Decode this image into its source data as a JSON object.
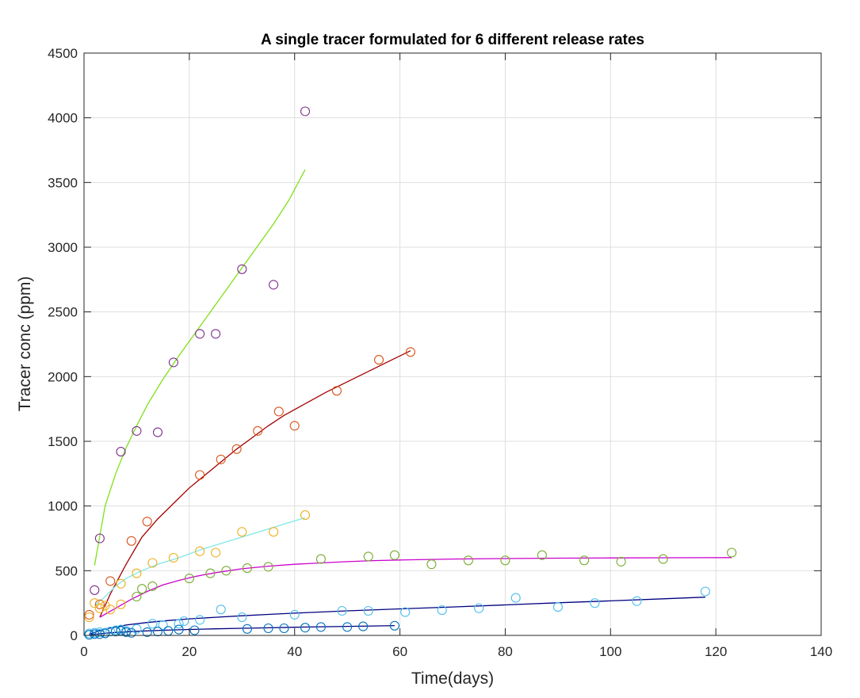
{
  "chart_data": {
    "type": "scatter",
    "title": "A single tracer formulated for 6 different release rates",
    "xlabel": "Time(days)",
    "ylabel": "Tracer conc (ppm)",
    "xlim": [
      0,
      140
    ],
    "ylim": [
      0,
      4500
    ],
    "xticks": [
      0,
      20,
      40,
      60,
      80,
      100,
      120,
      140
    ],
    "yticks": [
      0,
      500,
      1000,
      1500,
      2000,
      2500,
      3000,
      3500,
      4000,
      4500
    ],
    "grid": true,
    "legend": "none",
    "series": [
      {
        "marker_color": "#7e2f8e",
        "line_color": "#7fe01a",
        "points": [
          [
            2,
            350
          ],
          [
            3,
            750
          ],
          [
            7,
            1420
          ],
          [
            10,
            1580
          ],
          [
            14,
            1570
          ],
          [
            17,
            2110
          ],
          [
            22,
            2330
          ],
          [
            25,
            2330
          ],
          [
            30,
            2830
          ],
          [
            36,
            2710
          ],
          [
            42,
            4050
          ]
        ],
        "fit": [
          [
            2,
            540
          ],
          [
            4,
            1000
          ],
          [
            6,
            1250
          ],
          [
            8,
            1450
          ],
          [
            10,
            1620
          ],
          [
            12,
            1780
          ],
          [
            15,
            1980
          ],
          [
            18,
            2160
          ],
          [
            21,
            2330
          ],
          [
            24,
            2500
          ],
          [
            27,
            2670
          ],
          [
            30,
            2840
          ],
          [
            33,
            3010
          ],
          [
            36,
            3180
          ],
          [
            39,
            3370
          ],
          [
            42,
            3600
          ]
        ]
      },
      {
        "marker_color": "#d95319",
        "line_color": "#a50000",
        "points": [
          [
            1,
            160
          ],
          [
            3,
            240
          ],
          [
            5,
            420
          ],
          [
            9,
            730
          ],
          [
            12,
            880
          ],
          [
            22,
            1240
          ],
          [
            26,
            1360
          ],
          [
            29,
            1440
          ],
          [
            33,
            1580
          ],
          [
            37,
            1730
          ],
          [
            40,
            1620
          ],
          [
            48,
            1890
          ],
          [
            56,
            2130
          ],
          [
            62,
            2190
          ]
        ],
        "fit": [
          [
            3,
            140
          ],
          [
            5,
            320
          ],
          [
            8,
            550
          ],
          [
            11,
            760
          ],
          [
            14,
            900
          ],
          [
            17,
            1020
          ],
          [
            20,
            1140
          ],
          [
            23,
            1240
          ],
          [
            26,
            1340
          ],
          [
            29,
            1440
          ],
          [
            32,
            1530
          ],
          [
            35,
            1620
          ],
          [
            38,
            1700
          ],
          [
            42,
            1790
          ],
          [
            46,
            1880
          ],
          [
            50,
            1960
          ],
          [
            54,
            2040
          ],
          [
            58,
            2120
          ],
          [
            62,
            2200
          ]
        ]
      },
      {
        "marker_color": "#edb120",
        "line_color": "#7fe8e8",
        "points": [
          [
            1,
            140
          ],
          [
            2,
            250
          ],
          [
            3,
            210
          ],
          [
            4,
            230
          ],
          [
            5,
            200
          ],
          [
            7,
            240
          ],
          [
            7,
            400
          ],
          [
            10,
            480
          ],
          [
            13,
            560
          ],
          [
            17,
            600
          ],
          [
            22,
            650
          ],
          [
            25,
            640
          ],
          [
            30,
            800
          ],
          [
            36,
            800
          ],
          [
            42,
            930
          ]
        ],
        "fit": [
          [
            2,
            230
          ],
          [
            4,
            300
          ],
          [
            6,
            380
          ],
          [
            8,
            440
          ],
          [
            11,
            500
          ],
          [
            14,
            550
          ],
          [
            18,
            600
          ],
          [
            22,
            660
          ],
          [
            26,
            710
          ],
          [
            30,
            760
          ],
          [
            34,
            810
          ],
          [
            38,
            860
          ],
          [
            42,
            910
          ]
        ]
      },
      {
        "marker_color": "#77ac30",
        "line_color": "#cc00cc",
        "points": [
          [
            10,
            300
          ],
          [
            11,
            360
          ],
          [
            13,
            380
          ],
          [
            20,
            440
          ],
          [
            24,
            480
          ],
          [
            27,
            500
          ],
          [
            31,
            520
          ],
          [
            35,
            530
          ],
          [
            45,
            590
          ],
          [
            54,
            610
          ],
          [
            59,
            620
          ],
          [
            66,
            550
          ],
          [
            73,
            580
          ],
          [
            80,
            580
          ],
          [
            87,
            620
          ],
          [
            95,
            580
          ],
          [
            102,
            570
          ],
          [
            110,
            590
          ],
          [
            123,
            640
          ]
        ],
        "fit": [
          [
            3,
            140
          ],
          [
            6,
            210
          ],
          [
            9,
            280
          ],
          [
            12,
            340
          ],
          [
            15,
            390
          ],
          [
            18,
            425
          ],
          [
            21,
            455
          ],
          [
            25,
            485
          ],
          [
            30,
            515
          ],
          [
            35,
            535
          ],
          [
            40,
            550
          ],
          [
            45,
            560
          ],
          [
            50,
            570
          ],
          [
            55,
            578
          ],
          [
            60,
            583
          ],
          [
            70,
            590
          ],
          [
            80,
            594
          ],
          [
            90,
            597
          ],
          [
            100,
            599
          ],
          [
            110,
            600
          ],
          [
            123,
            601
          ]
        ]
      },
      {
        "marker_color": "#4dbeee",
        "line_color": "#00007f",
        "points": [
          [
            1,
            15
          ],
          [
            2,
            20
          ],
          [
            3,
            25
          ],
          [
            4,
            20
          ],
          [
            5,
            30
          ],
          [
            6,
            40
          ],
          [
            7,
            45
          ],
          [
            8,
            35
          ],
          [
            10,
            50
          ],
          [
            13,
            90
          ],
          [
            15,
            80
          ],
          [
            18,
            90
          ],
          [
            19,
            110
          ],
          [
            22,
            120
          ],
          [
            26,
            200
          ],
          [
            30,
            140
          ],
          [
            40,
            160
          ],
          [
            49,
            190
          ],
          [
            54,
            190
          ],
          [
            61,
            180
          ],
          [
            68,
            195
          ],
          [
            75,
            210
          ],
          [
            82,
            290
          ],
          [
            90,
            220
          ],
          [
            97,
            250
          ],
          [
            105,
            265
          ],
          [
            118,
            340
          ]
        ],
        "fit": [
          [
            1,
            10
          ],
          [
            4,
            50
          ],
          [
            8,
            80
          ],
          [
            12,
            100
          ],
          [
            16,
            115
          ],
          [
            20,
            128
          ],
          [
            25,
            140
          ],
          [
            30,
            152
          ],
          [
            35,
            162
          ],
          [
            40,
            172
          ],
          [
            50,
            190
          ],
          [
            60,
            205
          ],
          [
            70,
            220
          ],
          [
            80,
            236
          ],
          [
            90,
            252
          ],
          [
            100,
            267
          ],
          [
            110,
            283
          ],
          [
            118,
            296
          ]
        ]
      },
      {
        "marker_color": "#0072bd",
        "line_color": "#00007f",
        "points": [
          [
            1,
            5
          ],
          [
            2,
            10
          ],
          [
            3,
            10
          ],
          [
            4,
            15
          ],
          [
            6,
            30
          ],
          [
            7,
            35
          ],
          [
            8,
            25
          ],
          [
            9,
            20
          ],
          [
            12,
            25
          ],
          [
            14,
            30
          ],
          [
            16,
            35
          ],
          [
            18,
            45
          ],
          [
            21,
            40
          ],
          [
            31,
            50
          ],
          [
            35,
            55
          ],
          [
            38,
            55
          ],
          [
            42,
            60
          ],
          [
            45,
            65
          ],
          [
            50,
            65
          ],
          [
            53,
            70
          ],
          [
            59,
            75
          ]
        ],
        "fit": [
          [
            1,
            5
          ],
          [
            5,
            20
          ],
          [
            10,
            32
          ],
          [
            15,
            40
          ],
          [
            20,
            46
          ],
          [
            25,
            51
          ],
          [
            30,
            55
          ],
          [
            35,
            59
          ],
          [
            40,
            63
          ],
          [
            45,
            67
          ],
          [
            50,
            70
          ],
          [
            55,
            73
          ],
          [
            59,
            76
          ]
        ]
      }
    ]
  }
}
